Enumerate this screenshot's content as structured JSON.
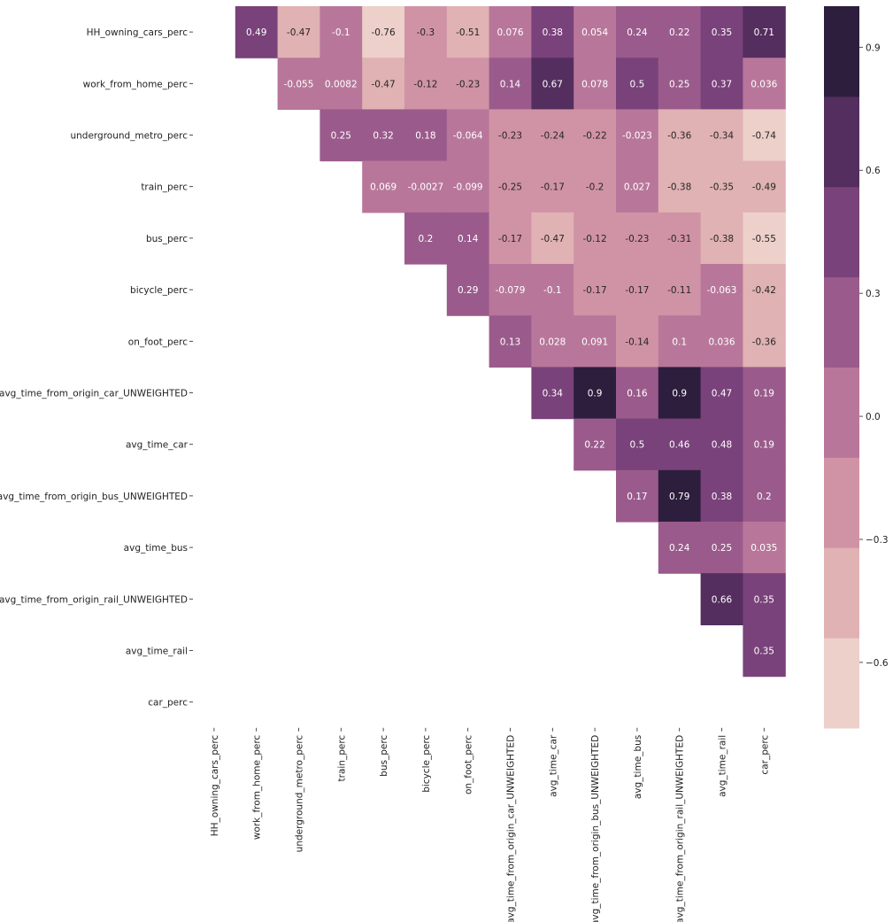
{
  "chart_data": {
    "type": "heatmap",
    "title": "",
    "xlabel": "",
    "ylabel": "",
    "variables": [
      "HH_owning_cars_perc",
      "work_from_home_perc",
      "underground_metro_perc",
      "train_perc",
      "bus_perc",
      "bicycle_perc",
      "on_foot_perc",
      "avg_time_from_origin_car_UNWEIGHTED",
      "avg_time_car",
      "avg_time_from_origin_bus_UNWEIGHTED",
      "avg_time_bus",
      "avg_time_from_origin_rail_UNWEIGHTED",
      "avg_time_rail",
      "car_perc"
    ],
    "mask": "lower triangle and diagonal hidden",
    "values": [
      [
        null,
        0.49,
        -0.47,
        -0.1,
        -0.76,
        -0.3,
        -0.51,
        0.076,
        0.38,
        0.054,
        0.24,
        0.22,
        0.35,
        0.71
      ],
      [
        null,
        null,
        -0.055,
        0.0082,
        -0.47,
        -0.12,
        -0.23,
        0.14,
        0.67,
        0.078,
        0.5,
        0.25,
        0.37,
        0.036
      ],
      [
        null,
        null,
        null,
        0.25,
        0.32,
        0.18,
        -0.064,
        -0.23,
        -0.24,
        -0.22,
        -0.023,
        -0.36,
        -0.34,
        -0.74
      ],
      [
        null,
        null,
        null,
        null,
        0.069,
        -0.0027,
        -0.099,
        -0.25,
        -0.17,
        -0.2,
        0.027,
        -0.38,
        -0.35,
        -0.49
      ],
      [
        null,
        null,
        null,
        null,
        null,
        0.2,
        0.14,
        -0.17,
        -0.47,
        -0.12,
        -0.23,
        -0.31,
        -0.38,
        -0.55
      ],
      [
        null,
        null,
        null,
        null,
        null,
        null,
        0.29,
        -0.079,
        -0.1,
        -0.17,
        -0.17,
        -0.11,
        -0.063,
        -0.42
      ],
      [
        null,
        null,
        null,
        null,
        null,
        null,
        null,
        0.13,
        0.028,
        0.091,
        -0.14,
        0.1,
        0.036,
        -0.36
      ],
      [
        null,
        null,
        null,
        null,
        null,
        null,
        null,
        null,
        0.34,
        0.9,
        0.16,
        0.9,
        0.47,
        0.19
      ],
      [
        null,
        null,
        null,
        null,
        null,
        null,
        null,
        null,
        null,
        0.22,
        0.5,
        0.46,
        0.48,
        0.19
      ],
      [
        null,
        null,
        null,
        null,
        null,
        null,
        null,
        null,
        null,
        null,
        0.17,
        0.79,
        0.38,
        0.2
      ],
      [
        null,
        null,
        null,
        null,
        null,
        null,
        null,
        null,
        null,
        null,
        null,
        0.24,
        0.25,
        0.035
      ],
      [
        null,
        null,
        null,
        null,
        null,
        null,
        null,
        null,
        null,
        null,
        null,
        null,
        0.66,
        0.35
      ],
      [
        null,
        null,
        null,
        null,
        null,
        null,
        null,
        null,
        null,
        null,
        null,
        null,
        null,
        0.35
      ],
      [
        null,
        null,
        null,
        null,
        null,
        null,
        null,
        null,
        null,
        null,
        null,
        null,
        null,
        null
      ]
    ],
    "colorbar": {
      "vmin": -0.76,
      "vmax": 1.0,
      "ticks": [
        -0.6,
        -0.3,
        0.0,
        0.3,
        0.6,
        0.9
      ],
      "tick_labels": [
        "−0.6",
        "−0.3",
        "0.0",
        "0.3",
        "0.6",
        "0.9"
      ],
      "colors": [
        "#ecd0c9",
        "#e0b2b3",
        "#d093a5",
        "#b8779a",
        "#9a5b8c",
        "#79427a",
        "#542e5e",
        "#2c1e3c"
      ]
    },
    "grid": false,
    "legend": "colorbar-right"
  }
}
